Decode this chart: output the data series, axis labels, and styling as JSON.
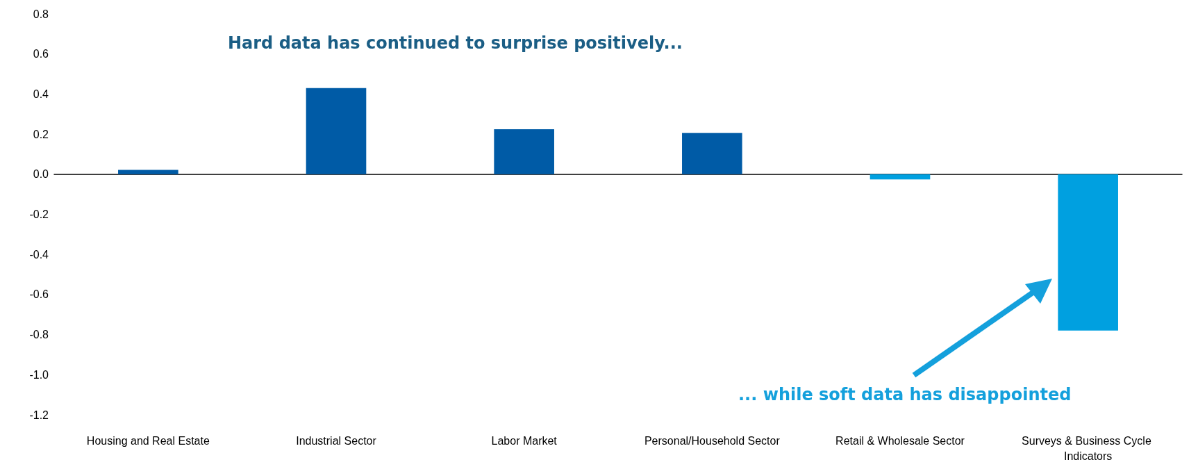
{
  "chart_data": {
    "type": "bar",
    "categories": [
      "Housing and Real Estate",
      "Industrial Sector",
      "Labor Market",
      "Personal/Household Sector",
      "Retail & Wholesale Sector",
      "Surveys & Business Cycle Indicators"
    ],
    "values": [
      0.022,
      0.43,
      0.225,
      0.206,
      -0.026,
      -0.78
    ],
    "colors": [
      "#005ba6",
      "#005ba6",
      "#005ba6",
      "#005ba6",
      "#00a0e0",
      "#00a0e0"
    ],
    "ylim": [
      -1.2,
      0.8
    ],
    "yticks": [
      {
        "value": -1.2,
        "label": "-1.2"
      },
      {
        "value": -1,
        "label": "-1.0"
      },
      -0.8,
      -0.6,
      -0.4,
      -0.2,
      {
        "value": 0,
        "label": "0.0"
      },
      0.2,
      0.4,
      0.6,
      0.8
    ],
    "annotations": [
      "Hard data has continued to surprise positively...",
      "... while soft data has disappointed"
    ],
    "data_labels": false
  }
}
